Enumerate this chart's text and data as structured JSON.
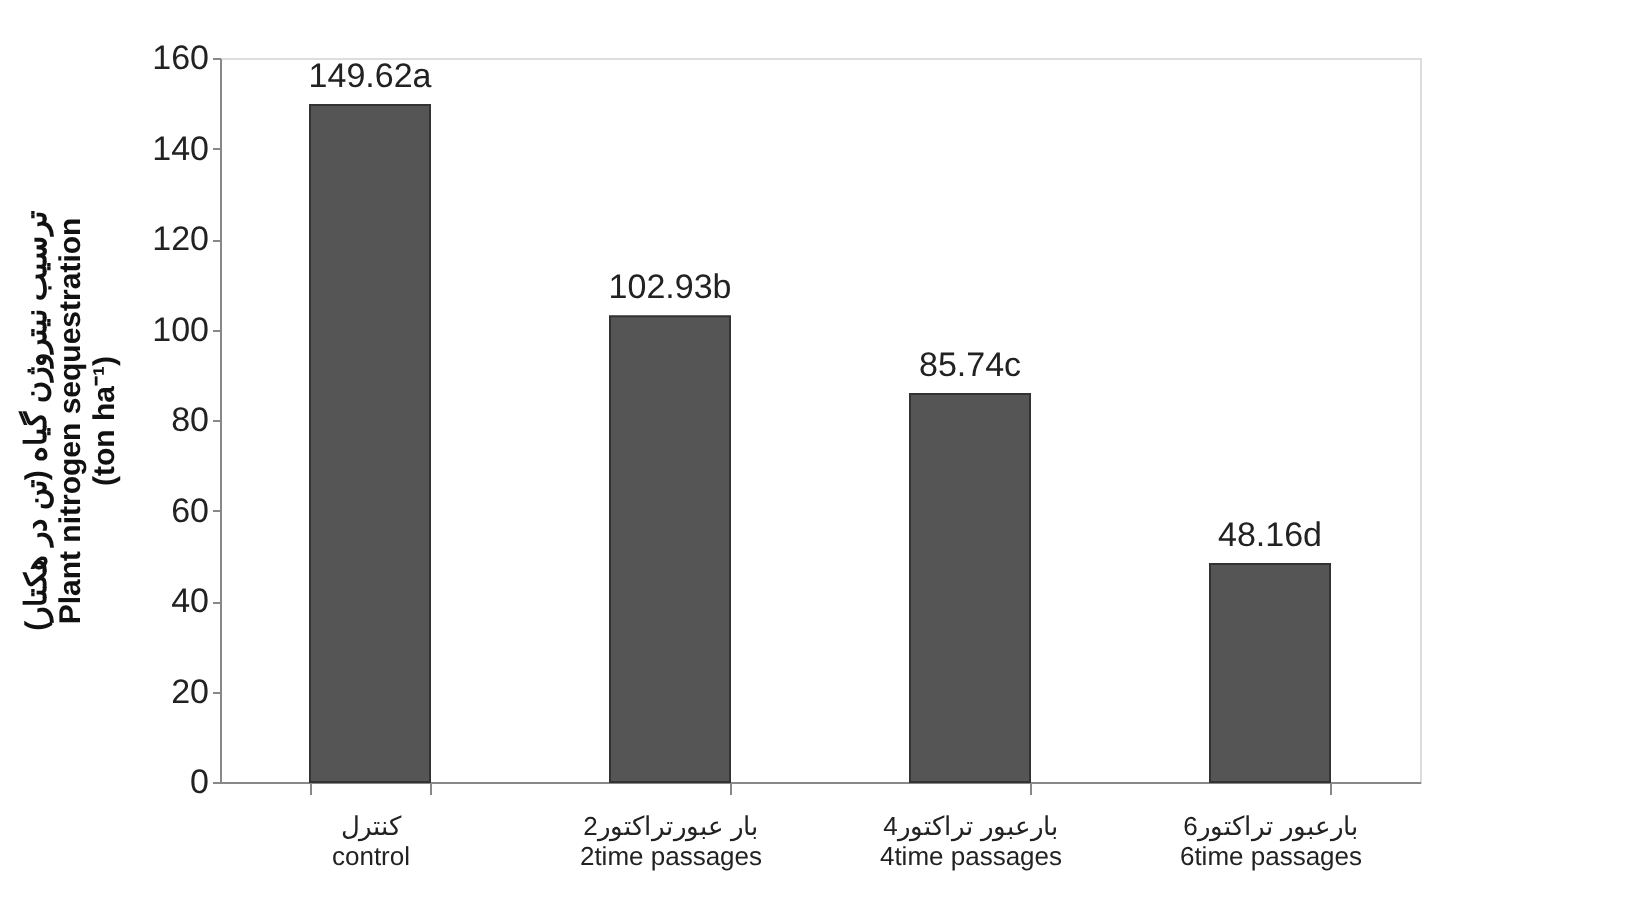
{
  "chart_data": {
    "type": "bar",
    "categories": [
      "کنترل\ncontrol",
      "2بار عبورتراکتور\n2time passages",
      "4بارعبور تراکتور\n4time passages",
      "6بارعبور تراکتور\n6time passages"
    ],
    "values": [
      149.62,
      102.93,
      85.74,
      48.16
    ],
    "value_labels": [
      "149.62a",
      "102.93b",
      "85.74c",
      "48.16d"
    ],
    "color": "#555555",
    "ylabel": "ترسیب نیتروژن گیاه (تن در هکتار)\nPlant nitrogen sequestration\n(ton ha⁻¹)",
    "ylim": [
      0,
      160
    ],
    "yticks": [
      0,
      20,
      40,
      60,
      80,
      100,
      120,
      140,
      160
    ],
    "grid": false
  }
}
